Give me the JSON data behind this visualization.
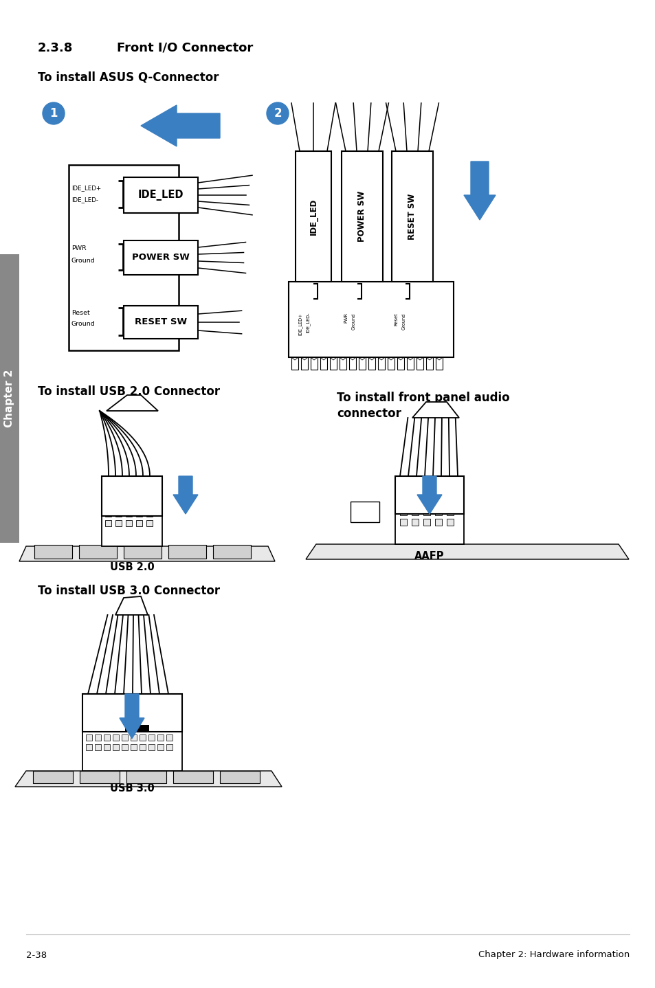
{
  "bg_color": "#ffffff",
  "page_width": 9.54,
  "page_height": 14.38,
  "title_num": "2.3.8",
  "title_text": "Front I/O Connector",
  "subtitle": "To install ASUS Q-Connector",
  "section2_title": "To install USB 2.0 Connector",
  "section3_title": "To install front panel audio\nconnector",
  "section4_title": "To install USB 3.0 Connector",
  "footer_left": "2-38",
  "footer_right": "Chapter 2: Hardware information",
  "chapter_label": "Chapter 2",
  "arrow_color": "#3a7fc1",
  "sidebar_color": "#888888",
  "usb20_label": "USB 2.0",
  "usb30_label": "USB 3.0",
  "aafp_label": "AAFP"
}
